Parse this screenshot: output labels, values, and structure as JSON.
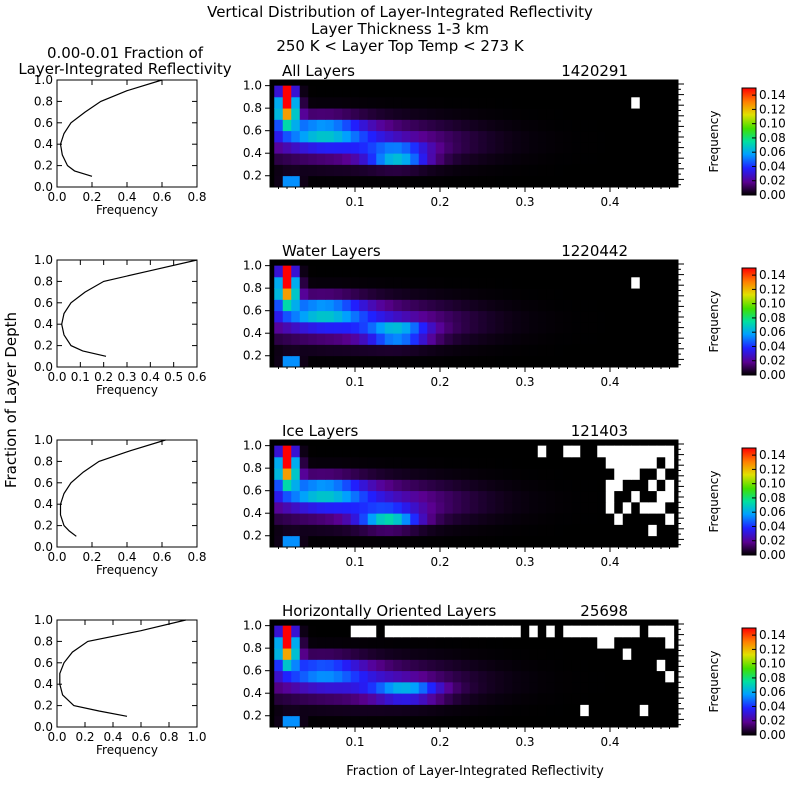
{
  "figure": {
    "title_lines": [
      "Vertical Distribution of Layer-Integrated Reflectivity",
      "Layer Thickness 1-3 km",
      "250 K < Layer Top Temp < 273 K"
    ],
    "profile_title_lines": [
      "0.00-0.01 Fraction of",
      "Layer-Integrated Reflectivity"
    ],
    "shared_ylabel": "Fraction of Layer Depth",
    "shared_xlabel": "Fraction of Layer-Integrated Reflectivity",
    "colorbar_label": "Frequency",
    "colorbar_ticks": [
      "0.14",
      "0.12",
      "0.10",
      "0.08",
      "0.06",
      "0.04",
      "0.02",
      "0.00"
    ],
    "colorbar_range": [
      0,
      0.15
    ],
    "colors": {
      "missing": "#ffffff",
      "empty": "#000000"
    }
  },
  "chart_data": [
    {
      "type": "line",
      "panel": "All Layers",
      "xlabel": "Frequency",
      "x_ticks": [
        "0.0",
        "0.2",
        "0.4",
        "0.6",
        "0.8"
      ],
      "y_ticks": [
        "0.0",
        "0.2",
        "0.4",
        "0.6",
        "0.8",
        "1.0"
      ],
      "xlim": [
        0,
        0.8
      ],
      "ylim": [
        0,
        1
      ],
      "x": [
        0.6,
        0.4,
        0.25,
        0.16,
        0.08,
        0.04,
        0.02,
        0.03,
        0.06,
        0.1,
        0.2
      ],
      "y": [
        1.0,
        0.9,
        0.8,
        0.7,
        0.6,
        0.5,
        0.4,
        0.3,
        0.2,
        0.15,
        0.1
      ]
    },
    {
      "type": "heatmap",
      "title": "All Layers",
      "count": "1420291",
      "x_tick_values": [
        0.1,
        0.2,
        0.3,
        0.4
      ],
      "x_ticks": [
        "0.1",
        "0.2",
        "0.3",
        "0.4"
      ],
      "y_ticks": [
        "0.2",
        "0.4",
        "0.6",
        "0.8",
        "1.0"
      ],
      "xlim": [
        0,
        0.48
      ],
      "ylim": [
        0.1,
        1.05
      ],
      "value_range": [
        0,
        0.15
      ],
      "missing_cells": [
        [
          0.43,
          0.85
        ]
      ],
      "hotspots": [
        {
          "x": 0.02,
          "y": 1.0,
          "strength": 0.17,
          "sx": 0.006,
          "sy": 0.12
        },
        {
          "x": 0.02,
          "y": 0.8,
          "strength": 0.13,
          "sx": 0.012,
          "sy": 0.14
        },
        {
          "x": 0.025,
          "y": 0.15,
          "strength": 0.08,
          "sx": 0.008,
          "sy": 0.05
        },
        {
          "x": 0.15,
          "y": 0.38,
          "strength": 0.06,
          "sx": 0.035,
          "sy": 0.08
        },
        {
          "x": 0.06,
          "y": 0.6,
          "strength": 0.05,
          "sx": 0.05,
          "sy": 0.12
        },
        {
          "x": 0.1,
          "y": 0.5,
          "strength": 0.03,
          "sx": 0.12,
          "sy": 0.18
        }
      ]
    },
    {
      "type": "line",
      "panel": "Water Layers",
      "xlabel": "Frequency",
      "x_ticks": [
        "0.0",
        "0.1",
        "0.2",
        "0.3",
        "0.4",
        "0.5",
        "0.6"
      ],
      "y_ticks": [
        "0.0",
        "0.2",
        "0.4",
        "0.6",
        "0.8",
        "1.0"
      ],
      "xlim": [
        0,
        0.6
      ],
      "ylim": [
        0,
        1
      ],
      "x": [
        0.6,
        0.4,
        0.2,
        0.12,
        0.06,
        0.03,
        0.02,
        0.03,
        0.06,
        0.11,
        0.21
      ],
      "y": [
        1.0,
        0.9,
        0.8,
        0.7,
        0.6,
        0.5,
        0.4,
        0.3,
        0.2,
        0.15,
        0.1
      ]
    },
    {
      "type": "heatmap",
      "title": "Water Layers",
      "count": "1220442",
      "x_tick_values": [
        0.1,
        0.2,
        0.3,
        0.4
      ],
      "x_ticks": [
        "0.1",
        "0.2",
        "0.3",
        "0.4"
      ],
      "y_ticks": [
        "0.2",
        "0.4",
        "0.6",
        "0.8",
        "1.0"
      ],
      "xlim": [
        0,
        0.48
      ],
      "ylim": [
        0.1,
        1.05
      ],
      "value_range": [
        0,
        0.15
      ],
      "missing_cells": [
        [
          0.43,
          0.85
        ]
      ],
      "hotspots": [
        {
          "x": 0.02,
          "y": 1.0,
          "strength": 0.17,
          "sx": 0.006,
          "sy": 0.12
        },
        {
          "x": 0.02,
          "y": 0.8,
          "strength": 0.13,
          "sx": 0.012,
          "sy": 0.14
        },
        {
          "x": 0.025,
          "y": 0.15,
          "strength": 0.08,
          "sx": 0.008,
          "sy": 0.05
        },
        {
          "x": 0.15,
          "y": 0.4,
          "strength": 0.06,
          "sx": 0.035,
          "sy": 0.08
        },
        {
          "x": 0.06,
          "y": 0.6,
          "strength": 0.05,
          "sx": 0.05,
          "sy": 0.12
        },
        {
          "x": 0.1,
          "y": 0.5,
          "strength": 0.03,
          "sx": 0.12,
          "sy": 0.18
        }
      ]
    },
    {
      "type": "line",
      "panel": "Ice Layers",
      "xlabel": "Frequency",
      "x_ticks": [
        "0.0",
        "0.2",
        "0.4",
        "0.6",
        "0.8"
      ],
      "y_ticks": [
        "0.0",
        "0.2",
        "0.4",
        "0.6",
        "0.8",
        "1.0"
      ],
      "xlim": [
        0,
        0.8
      ],
      "ylim": [
        0,
        1
      ],
      "x": [
        0.62,
        0.42,
        0.24,
        0.15,
        0.08,
        0.04,
        0.02,
        0.02,
        0.04,
        0.07,
        0.11
      ],
      "y": [
        1.0,
        0.9,
        0.8,
        0.7,
        0.6,
        0.5,
        0.4,
        0.3,
        0.2,
        0.15,
        0.1
      ]
    },
    {
      "type": "heatmap",
      "title": "Ice Layers",
      "count": "121403",
      "x_tick_values": [
        0.1,
        0.2,
        0.3,
        0.4
      ],
      "x_ticks": [
        "0.1",
        "0.2",
        "0.3",
        "0.4"
      ],
      "y_ticks": [
        "0.2",
        "0.4",
        "0.6",
        "0.8",
        "1.0"
      ],
      "xlim": [
        0,
        0.48
      ],
      "ylim": [
        0.1,
        1.05
      ],
      "value_range": [
        0,
        0.15
      ],
      "missing_cells": [
        [
          0.32,
          0.95
        ],
        [
          0.35,
          0.95
        ],
        [
          0.36,
          0.95
        ],
        [
          0.39,
          0.95
        ],
        [
          0.4,
          0.95
        ],
        [
          0.41,
          0.95
        ],
        [
          0.42,
          0.95
        ],
        [
          0.43,
          0.95
        ],
        [
          0.44,
          0.95
        ],
        [
          0.45,
          0.95
        ],
        [
          0.46,
          0.95
        ],
        [
          0.47,
          0.95
        ],
        [
          0.4,
          0.85
        ],
        [
          0.41,
          0.85
        ],
        [
          0.42,
          0.85
        ],
        [
          0.43,
          0.85
        ],
        [
          0.44,
          0.85
        ],
        [
          0.45,
          0.85
        ],
        [
          0.47,
          0.85
        ],
        [
          0.41,
          0.75
        ],
        [
          0.42,
          0.75
        ],
        [
          0.43,
          0.75
        ],
        [
          0.46,
          0.75
        ],
        [
          0.4,
          0.65
        ],
        [
          0.41,
          0.65
        ],
        [
          0.45,
          0.65
        ],
        [
          0.47,
          0.65
        ],
        [
          0.4,
          0.55
        ],
        [
          0.43,
          0.55
        ],
        [
          0.46,
          0.55
        ],
        [
          0.47,
          0.55
        ],
        [
          0.4,
          0.45
        ],
        [
          0.42,
          0.45
        ],
        [
          0.44,
          0.45
        ],
        [
          0.45,
          0.45
        ],
        [
          0.46,
          0.45
        ],
        [
          0.41,
          0.35
        ],
        [
          0.47,
          0.35
        ],
        [
          0.45,
          0.25
        ]
      ],
      "hotspots": [
        {
          "x": 0.02,
          "y": 1.0,
          "strength": 0.17,
          "sx": 0.006,
          "sy": 0.12
        },
        {
          "x": 0.02,
          "y": 0.8,
          "strength": 0.13,
          "sx": 0.012,
          "sy": 0.14
        },
        {
          "x": 0.025,
          "y": 0.15,
          "strength": 0.08,
          "sx": 0.008,
          "sy": 0.05
        },
        {
          "x": 0.14,
          "y": 0.36,
          "strength": 0.06,
          "sx": 0.035,
          "sy": 0.08
        },
        {
          "x": 0.06,
          "y": 0.6,
          "strength": 0.05,
          "sx": 0.05,
          "sy": 0.12
        },
        {
          "x": 0.1,
          "y": 0.5,
          "strength": 0.03,
          "sx": 0.12,
          "sy": 0.18
        }
      ]
    },
    {
      "type": "line",
      "panel": "Horizontally Oriented Layers",
      "xlabel": "Frequency",
      "x_ticks": [
        "0.0",
        "0.2",
        "0.4",
        "0.6",
        "0.8",
        "1.0"
      ],
      "y_ticks": [
        "0.0",
        "0.2",
        "0.4",
        "0.6",
        "0.8",
        "1.0"
      ],
      "xlim": [
        0,
        1.0
      ],
      "ylim": [
        0,
        1
      ],
      "x": [
        0.92,
        0.6,
        0.22,
        0.11,
        0.05,
        0.02,
        0.02,
        0.04,
        0.12,
        0.3,
        0.5
      ],
      "y": [
        1.0,
        0.9,
        0.8,
        0.7,
        0.6,
        0.5,
        0.4,
        0.3,
        0.2,
        0.15,
        0.1
      ]
    },
    {
      "type": "heatmap",
      "title": "Horizontally Oriented Layers",
      "count": "25698",
      "x_tick_values": [
        0.1,
        0.2,
        0.3,
        0.4
      ],
      "x_ticks": [
        "0.1",
        "0.2",
        "0.3",
        "0.4"
      ],
      "y_ticks": [
        "0.2",
        "0.4",
        "0.6",
        "0.8",
        "1.0"
      ],
      "xlim": [
        0,
        0.48
      ],
      "ylim": [
        0.1,
        1.05
      ],
      "value_range": [
        0,
        0.15
      ],
      "missing_cells": [
        [
          0.1,
          0.95
        ],
        [
          0.11,
          0.95
        ],
        [
          0.12,
          0.95
        ],
        [
          0.14,
          0.95
        ],
        [
          0.15,
          0.95
        ],
        [
          0.16,
          0.95
        ],
        [
          0.17,
          0.95
        ],
        [
          0.18,
          0.95
        ],
        [
          0.19,
          0.95
        ],
        [
          0.2,
          0.95
        ],
        [
          0.21,
          0.95
        ],
        [
          0.22,
          0.95
        ],
        [
          0.23,
          0.95
        ],
        [
          0.24,
          0.95
        ],
        [
          0.25,
          0.95
        ],
        [
          0.26,
          0.95
        ],
        [
          0.27,
          0.95
        ],
        [
          0.28,
          0.95
        ],
        [
          0.29,
          0.95
        ],
        [
          0.31,
          0.95
        ],
        [
          0.33,
          0.95
        ],
        [
          0.35,
          0.95
        ],
        [
          0.36,
          0.95
        ],
        [
          0.37,
          0.95
        ],
        [
          0.38,
          0.95
        ],
        [
          0.39,
          0.95
        ],
        [
          0.4,
          0.95
        ],
        [
          0.41,
          0.95
        ],
        [
          0.42,
          0.95
        ],
        [
          0.43,
          0.95
        ],
        [
          0.45,
          0.95
        ],
        [
          0.46,
          0.95
        ],
        [
          0.47,
          0.95
        ],
        [
          0.39,
          0.85
        ],
        [
          0.4,
          0.85
        ],
        [
          0.47,
          0.85
        ],
        [
          0.42,
          0.75
        ],
        [
          0.46,
          0.65
        ],
        [
          0.47,
          0.55
        ],
        [
          0.37,
          0.25
        ],
        [
          0.44,
          0.25
        ]
      ],
      "hotspots": [
        {
          "x": 0.02,
          "y": 1.0,
          "strength": 0.17,
          "sx": 0.006,
          "sy": 0.12
        },
        {
          "x": 0.02,
          "y": 0.8,
          "strength": 0.13,
          "sx": 0.012,
          "sy": 0.14
        },
        {
          "x": 0.025,
          "y": 0.15,
          "strength": 0.08,
          "sx": 0.008,
          "sy": 0.05
        },
        {
          "x": 0.16,
          "y": 0.42,
          "strength": 0.05,
          "sx": 0.04,
          "sy": 0.08
        },
        {
          "x": 0.06,
          "y": 0.6,
          "strength": 0.04,
          "sx": 0.05,
          "sy": 0.12
        },
        {
          "x": 0.1,
          "y": 0.5,
          "strength": 0.025,
          "sx": 0.12,
          "sy": 0.18
        }
      ]
    }
  ]
}
